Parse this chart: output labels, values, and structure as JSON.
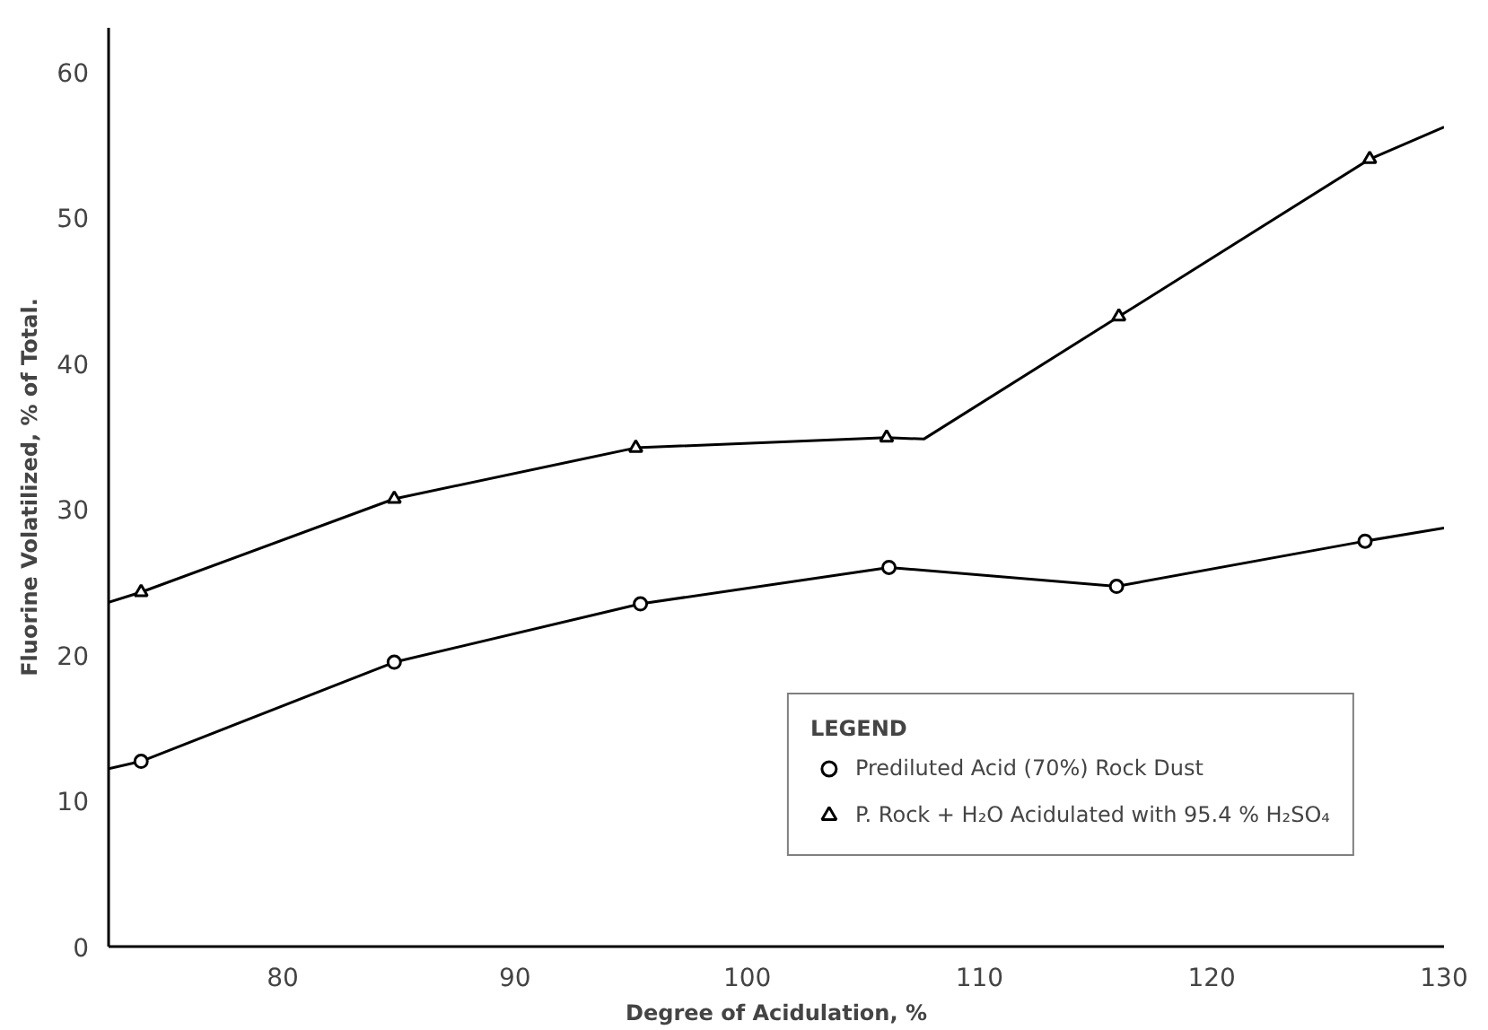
{
  "chart_data": {
    "type": "line",
    "xlabel": "Degree of Acidulation, %",
    "ylabel": "Fluorine Volatilized, % of Total.",
    "legend_title": "LEGEND",
    "xlim": [
      72.5,
      130
    ],
    "ylim": [
      0,
      63
    ],
    "xticks": [
      80,
      90,
      100,
      110,
      120,
      130
    ],
    "yticks": [
      0,
      10,
      20,
      30,
      40,
      50,
      60
    ],
    "grid": false,
    "legend": "bottom right",
    "series": [
      {
        "marker": "none",
        "color": "#000000",
        "x": [
          72.5,
          73.9,
          84.8,
          95.2,
          106.0,
          107.6,
          116.0,
          126.8,
          130
        ],
        "values": [
          23.6,
          24.3,
          30.7,
          34.2,
          34.9,
          34.8,
          43.2,
          54.0,
          56.2
        ]
      },
      {
        "marker": "none",
        "color": "#000000",
        "x": [
          72.5,
          73.9,
          84.8,
          95.4,
          106.1,
          115.9,
          126.6,
          130
        ],
        "values": [
          12.2,
          12.7,
          19.5,
          23.5,
          26.0,
          24.7,
          27.8,
          28.7
        ]
      },
      {
        "type": "scatter",
        "marker": "circle",
        "name": "Prediluted Acid (70%) Rock Dust",
        "color": "#000000",
        "x": [
          73.9,
          84.8,
          95.4,
          106.1,
          115.9,
          126.6
        ],
        "values": [
          12.7,
          19.5,
          23.5,
          26.0,
          24.7,
          27.8
        ]
      },
      {
        "type": "scatter",
        "marker": "triangle",
        "name": "P. Rock + H₂O Acidulated with 95.4 % H₂SO₄",
        "color": "#000000",
        "x": [
          73.9,
          84.8,
          95.2,
          106.0,
          116.0,
          126.8
        ],
        "values": [
          24.3,
          30.7,
          34.2,
          34.9,
          43.2,
          54.0
        ]
      }
    ]
  }
}
